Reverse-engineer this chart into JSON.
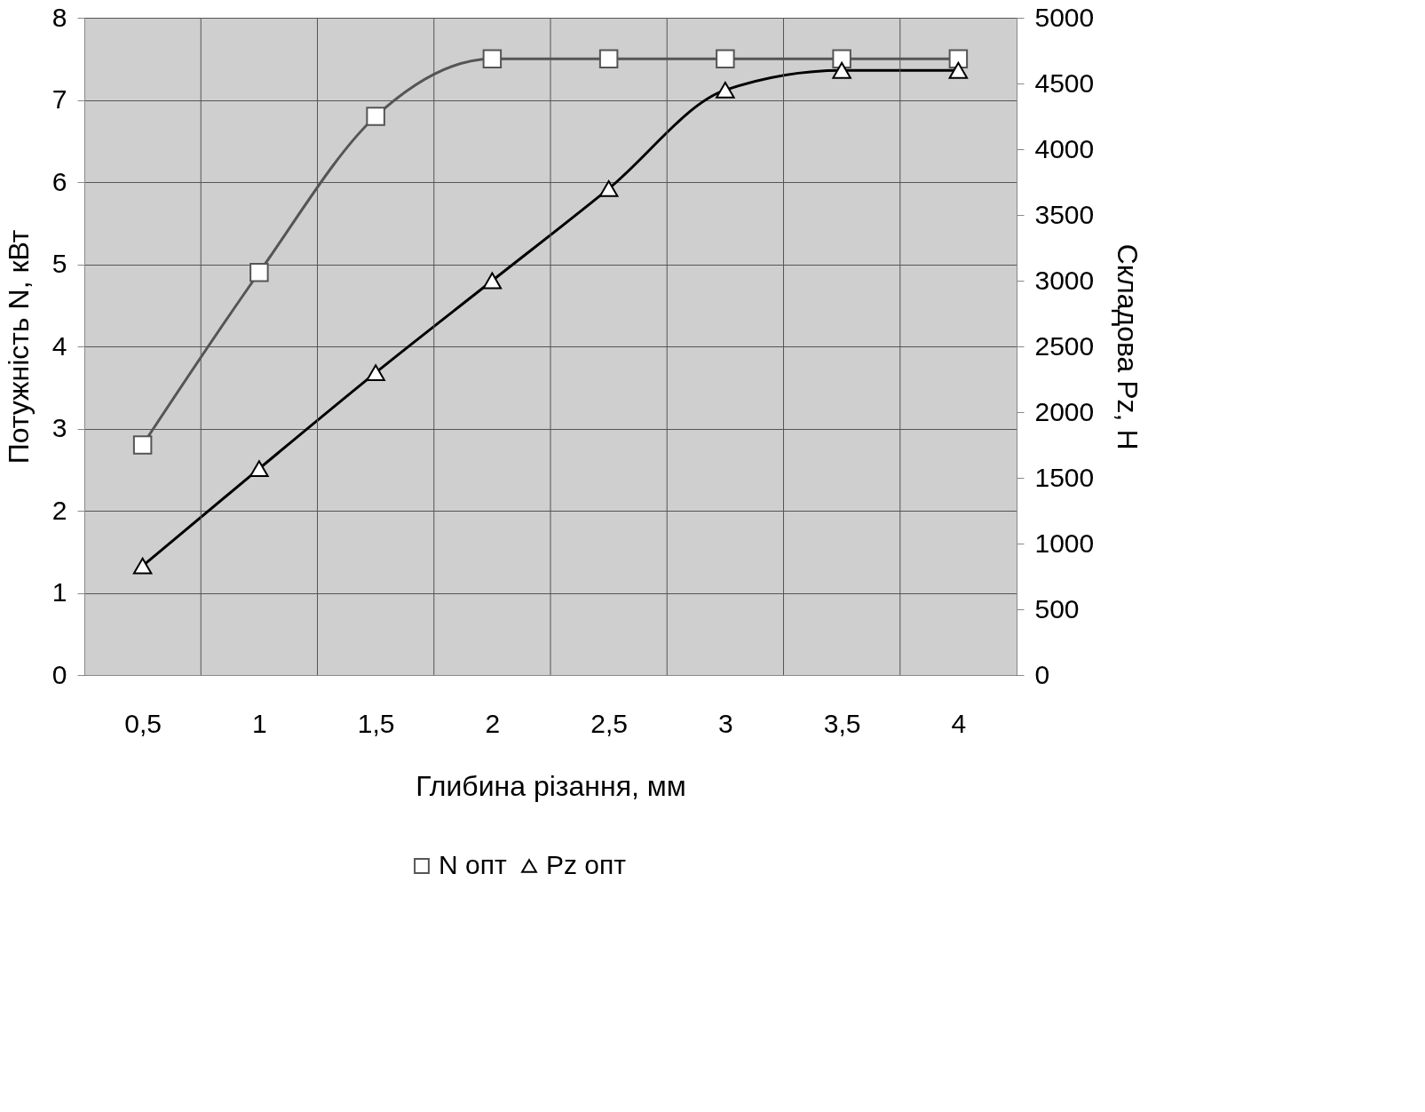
{
  "chart_data": {
    "type": "line",
    "xlabel": "Глибина різання, мм",
    "ylabel": "Потужність N, кВт",
    "y2label": "Складова Pz, Н",
    "categories": [
      "0,5",
      "1",
      "1,5",
      "2",
      "2,5",
      "3",
      "3,5",
      "4"
    ],
    "series": [
      {
        "name": "N опт",
        "color": "#555555",
        "marker": "square",
        "values": [
          2.8,
          4.9,
          6.8,
          7.5,
          7.5,
          7.5,
          7.5,
          7.5
        ]
      },
      {
        "name": "Pz опт",
        "color": "#000000",
        "marker": "triangle",
        "axis": "y2",
        "values": [
          830,
          1570,
          2300,
          3000,
          3700,
          4450,
          4600,
          4600
        ]
      }
    ],
    "ylim": [
      0,
      8
    ],
    "yticks": [
      0,
      1,
      2,
      3,
      4,
      5,
      6,
      7,
      8
    ],
    "y2lim": [
      0,
      5000
    ],
    "y2ticks": [
      0,
      500,
      1000,
      1500,
      2000,
      2500,
      3000,
      3500,
      4000,
      4500,
      5000
    ],
    "grid": true,
    "legend": "bottom",
    "line_style": "solid"
  }
}
